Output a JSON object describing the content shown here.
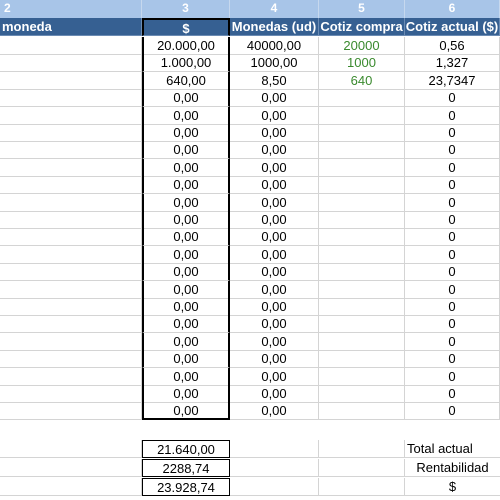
{
  "column_numbers": [
    "2",
    "3",
    "4",
    "5",
    "6"
  ],
  "headers": {
    "col1": "moneda",
    "col3": "$",
    "col4": "Monedas (ud)",
    "col5": "Cotiz compra",
    "col6": "Cotiz actual ($)"
  },
  "rows": [
    {
      "usd": "20.000,00",
      "units": "40000,00",
      "buy": "20000",
      "current": "0,56"
    },
    {
      "usd": "1.000,00",
      "units": "1000,00",
      "buy": "1000",
      "current": "1,327"
    },
    {
      "usd": "640,00",
      "units": "8,50",
      "buy": "640",
      "current": "23,7347"
    },
    {
      "usd": "0,00",
      "units": "0,00",
      "buy": "",
      "current": "0"
    },
    {
      "usd": "0,00",
      "units": "0,00",
      "buy": "",
      "current": "0"
    },
    {
      "usd": "0,00",
      "units": "0,00",
      "buy": "",
      "current": "0"
    },
    {
      "usd": "0,00",
      "units": "0,00",
      "buy": "",
      "current": "0"
    },
    {
      "usd": "0,00",
      "units": "0,00",
      "buy": "",
      "current": "0"
    },
    {
      "usd": "0,00",
      "units": "0,00",
      "buy": "",
      "current": "0"
    },
    {
      "usd": "0,00",
      "units": "0,00",
      "buy": "",
      "current": "0"
    },
    {
      "usd": "0,00",
      "units": "0,00",
      "buy": "",
      "current": "0"
    },
    {
      "usd": "0,00",
      "units": "0,00",
      "buy": "",
      "current": "0"
    },
    {
      "usd": "0,00",
      "units": "0,00",
      "buy": "",
      "current": "0"
    },
    {
      "usd": "0,00",
      "units": "0,00",
      "buy": "",
      "current": "0"
    },
    {
      "usd": "0,00",
      "units": "0,00",
      "buy": "",
      "current": "0"
    },
    {
      "usd": "0,00",
      "units": "0,00",
      "buy": "",
      "current": "0"
    },
    {
      "usd": "0,00",
      "units": "0,00",
      "buy": "",
      "current": "0"
    },
    {
      "usd": "0,00",
      "units": "0,00",
      "buy": "",
      "current": "0"
    },
    {
      "usd": "0,00",
      "units": "0,00",
      "buy": "",
      "current": "0"
    },
    {
      "usd": "0,00",
      "units": "0,00",
      "buy": "",
      "current": "0"
    },
    {
      "usd": "0,00",
      "units": "0,00",
      "buy": "",
      "current": "0"
    },
    {
      "usd": "0,00",
      "units": "0,00",
      "buy": "",
      "current": "0"
    }
  ],
  "summary": [
    {
      "value": "21.640,00",
      "label": "Total actual"
    },
    {
      "value": "2288,74",
      "label": "Rentabilidad"
    },
    {
      "value": "23.928,74",
      "label": "$"
    }
  ],
  "colors": {
    "column_number_bar": "#a8c5e8",
    "header_bar": "#366092",
    "buy_price_text": "#3a8a2e"
  }
}
